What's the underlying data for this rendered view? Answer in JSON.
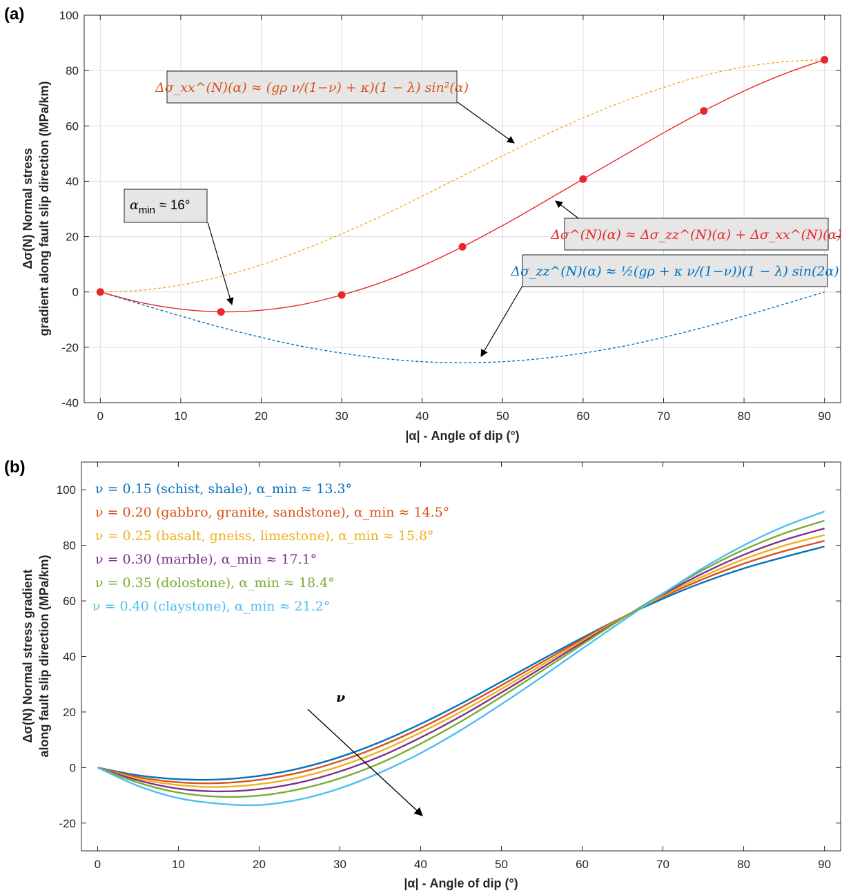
{
  "colors": {
    "blue": "#0072BD",
    "orange": "#D95319",
    "yellow": "#EDB120",
    "purple": "#7E2F8E",
    "green": "#77AC30",
    "cyan": "#4DBEEE",
    "red": "#E8262B"
  },
  "chart_data": [
    {
      "panel_label": "(a)",
      "type": "line",
      "xlabel": "|α| - Angle of dip (°)",
      "ylabel_line1": "Δσ(N) Normal stress",
      "ylabel_line2": "gradient along fault slip direction (MPa/km)",
      "xlim": [
        -2,
        92
      ],
      "ylim": [
        -40,
        100
      ],
      "xticks": [
        0,
        10,
        20,
        30,
        40,
        50,
        60,
        70,
        80,
        90
      ],
      "yticks": [
        -40,
        -20,
        0,
        20,
        40,
        60,
        80,
        100
      ],
      "xtick_labels": [
        "0",
        "10",
        "20",
        "30",
        "40",
        "50",
        "60",
        "70",
        "80",
        "90"
      ],
      "ytick_labels": [
        "-40",
        "-20",
        "0",
        "20",
        "40",
        "60",
        "80",
        "100"
      ],
      "grid": true,
      "series": [
        {
          "key": "xx",
          "color": "#EDB120",
          "dashed": true,
          "x": [
            0,
            5,
            10,
            15,
            20,
            25,
            30,
            35,
            40,
            45,
            50,
            55,
            60,
            65,
            70,
            75,
            80,
            85,
            90
          ],
          "y": [
            0,
            0.6,
            2.5,
            5.6,
            9.8,
            15.0,
            21.0,
            27.5,
            34.6,
            41.9,
            49.2,
            56.3,
            62.9,
            68.8,
            73.9,
            78.2,
            81.3,
            83.2,
            83.9
          ]
        },
        {
          "key": "zz",
          "color": "#0072BD",
          "dashed": true,
          "x": [
            0,
            5,
            10,
            15,
            20,
            25,
            30,
            35,
            40,
            45,
            50,
            55,
            60,
            65,
            70,
            75,
            80,
            85,
            90
          ],
          "y": [
            0,
            -4.4,
            -8.7,
            -12.8,
            -16.4,
            -19.6,
            -22.1,
            -24.0,
            -25.2,
            -25.6,
            -25.2,
            -24.0,
            -22.1,
            -19.6,
            -16.4,
            -12.8,
            -8.7,
            -4.4,
            0
          ]
        },
        {
          "key": "total",
          "color": "#E8262B",
          "dashed": false,
          "x": [
            0,
            5,
            10,
            15,
            20,
            25,
            30,
            35,
            40,
            45,
            50,
            55,
            60,
            65,
            70,
            75,
            80,
            85,
            90
          ],
          "y": [
            0,
            -3.8,
            -6.2,
            -7.2,
            -6.6,
            -4.6,
            -1.1,
            3.5,
            9.4,
            16.3,
            24.0,
            32.3,
            40.8,
            49.2,
            57.5,
            65.4,
            72.6,
            78.8,
            83.9
          ],
          "markers_x": [
            0,
            15,
            30,
            45,
            60,
            75,
            90
          ],
          "markers_y": [
            0,
            -7.2,
            -1.1,
            16.3,
            40.8,
            65.4,
            83.9
          ]
        }
      ],
      "annotations": {
        "xx_text": "Δσ_xx^(N)(α) ≈ (gρ ν/(1−ν) + κ)(1 − λ) sin²(α)",
        "total_text": "Δσ^(N)(α) ≈ Δσ_zz^(N)(α) + Δσ_xx^(N)(α)",
        "zz_text": "Δσ_zz^(N)(α) ≈ ½(gρ + κ ν/(1−ν))(1 − λ) sin(2α)",
        "amin_symbol": "α",
        "amin_sub": "min",
        "amin_value": "≈ 16°"
      }
    },
    {
      "panel_label": "(b)",
      "type": "line",
      "xlabel": "|α| - Angle of dip (°)",
      "ylabel_line1": "Δσ(N) Normal stress gradient",
      "ylabel_line2": "along fault slip direction (MPa/km)",
      "xlim": [
        -2,
        92
      ],
      "ylim": [
        -30,
        110
      ],
      "xticks": [
        0,
        10,
        20,
        30,
        40,
        50,
        60,
        70,
        80,
        90
      ],
      "yticks": [
        -20,
        0,
        20,
        40,
        60,
        80,
        100
      ],
      "xtick_labels": [
        "0",
        "10",
        "20",
        "30",
        "40",
        "50",
        "60",
        "70",
        "80",
        "90"
      ],
      "ytick_labels": [
        "-20",
        "0",
        "20",
        "40",
        "60",
        "80",
        "100"
      ],
      "grid": false,
      "arrow_label": "ν",
      "series": [
        {
          "name": "ν = 0.15 (schist, shale), α_min ≈ 13.3°",
          "nu": 0.15,
          "color": "#0072BD",
          "x": [
            0,
            5,
            10,
            15,
            20,
            25,
            30,
            35,
            40,
            45,
            50,
            55,
            60,
            65,
            70,
            75,
            80,
            85,
            90
          ],
          "y": [
            0,
            -2.8,
            -4.2,
            -4.3,
            -3.0,
            -0.3,
            3.8,
            9.2,
            15.7,
            23.0,
            30.9,
            38.9,
            46.7,
            54.1,
            60.8,
            66.7,
            71.7,
            75.8,
            79.6
          ]
        },
        {
          "name": "ν = 0.20 (gabbro, granite, sandstone), α_min ≈ 14.5°",
          "nu": 0.2,
          "color": "#D95319",
          "x": [
            0,
            5,
            10,
            15,
            20,
            25,
            30,
            35,
            40,
            45,
            50,
            55,
            60,
            65,
            70,
            75,
            80,
            85,
            90
          ],
          "y": [
            0,
            -3.4,
            -5.3,
            -5.6,
            -4.4,
            -1.8,
            2.3,
            7.7,
            14.2,
            21.6,
            29.6,
            37.9,
            46.2,
            54.1,
            61.4,
            67.9,
            73.4,
            77.9,
            81.6
          ]
        },
        {
          "name": "ν = 0.25 (basalt, gneiss, limestone), α_min ≈ 15.8°",
          "nu": 0.25,
          "color": "#EDB120",
          "x": [
            0,
            5,
            10,
            15,
            20,
            25,
            30,
            35,
            40,
            45,
            50,
            55,
            60,
            65,
            70,
            75,
            80,
            85,
            90
          ],
          "y": [
            0,
            -4.0,
            -6.3,
            -7.0,
            -6.0,
            -3.5,
            0.5,
            5.9,
            12.6,
            20.1,
            28.3,
            36.9,
            45.6,
            54.0,
            61.8,
            68.9,
            75.0,
            79.9,
            83.7
          ]
        },
        {
          "name": "ν = 0.30 (marble), α_min ≈ 17.1°",
          "nu": 0.3,
          "color": "#7E2F8E",
          "x": [
            0,
            5,
            10,
            15,
            20,
            25,
            30,
            35,
            40,
            45,
            50,
            55,
            60,
            65,
            70,
            75,
            80,
            85,
            90
          ],
          "y": [
            0,
            -4.6,
            -7.6,
            -8.6,
            -7.8,
            -5.4,
            -1.4,
            4.0,
            10.8,
            18.5,
            27.0,
            35.9,
            45.0,
            53.8,
            62.3,
            70.0,
            76.6,
            81.9,
            86.1
          ]
        },
        {
          "name": "ν = 0.35 (dolostone), α_min ≈ 18.4°",
          "nu": 0.35,
          "color": "#77AC30",
          "x": [
            0,
            5,
            10,
            15,
            20,
            25,
            30,
            35,
            40,
            45,
            50,
            55,
            60,
            65,
            70,
            75,
            80,
            85,
            90
          ],
          "y": [
            0,
            -5.4,
            -9.0,
            -10.5,
            -10.1,
            -7.8,
            -3.9,
            1.6,
            8.6,
            16.6,
            25.5,
            34.8,
            44.3,
            53.7,
            62.7,
            71.2,
            78.4,
            84.3,
            88.9
          ]
        },
        {
          "name": "ν = 0.40 (claystone), α_min ≈ 21.2°",
          "nu": 0.4,
          "color": "#4DBEEE",
          "x": [
            0,
            5,
            10,
            15,
            20,
            25,
            30,
            35,
            40,
            45,
            50,
            55,
            60,
            65,
            70,
            75,
            80,
            85,
            90
          ],
          "y": [
            0,
            -6.6,
            -11.0,
            -13.0,
            -13.5,
            -11.5,
            -7.5,
            -1.8,
            5.2,
            13.5,
            22.8,
            32.6,
            42.8,
            52.8,
            62.6,
            71.9,
            80.0,
            86.8,
            92.2
          ]
        }
      ]
    }
  ]
}
